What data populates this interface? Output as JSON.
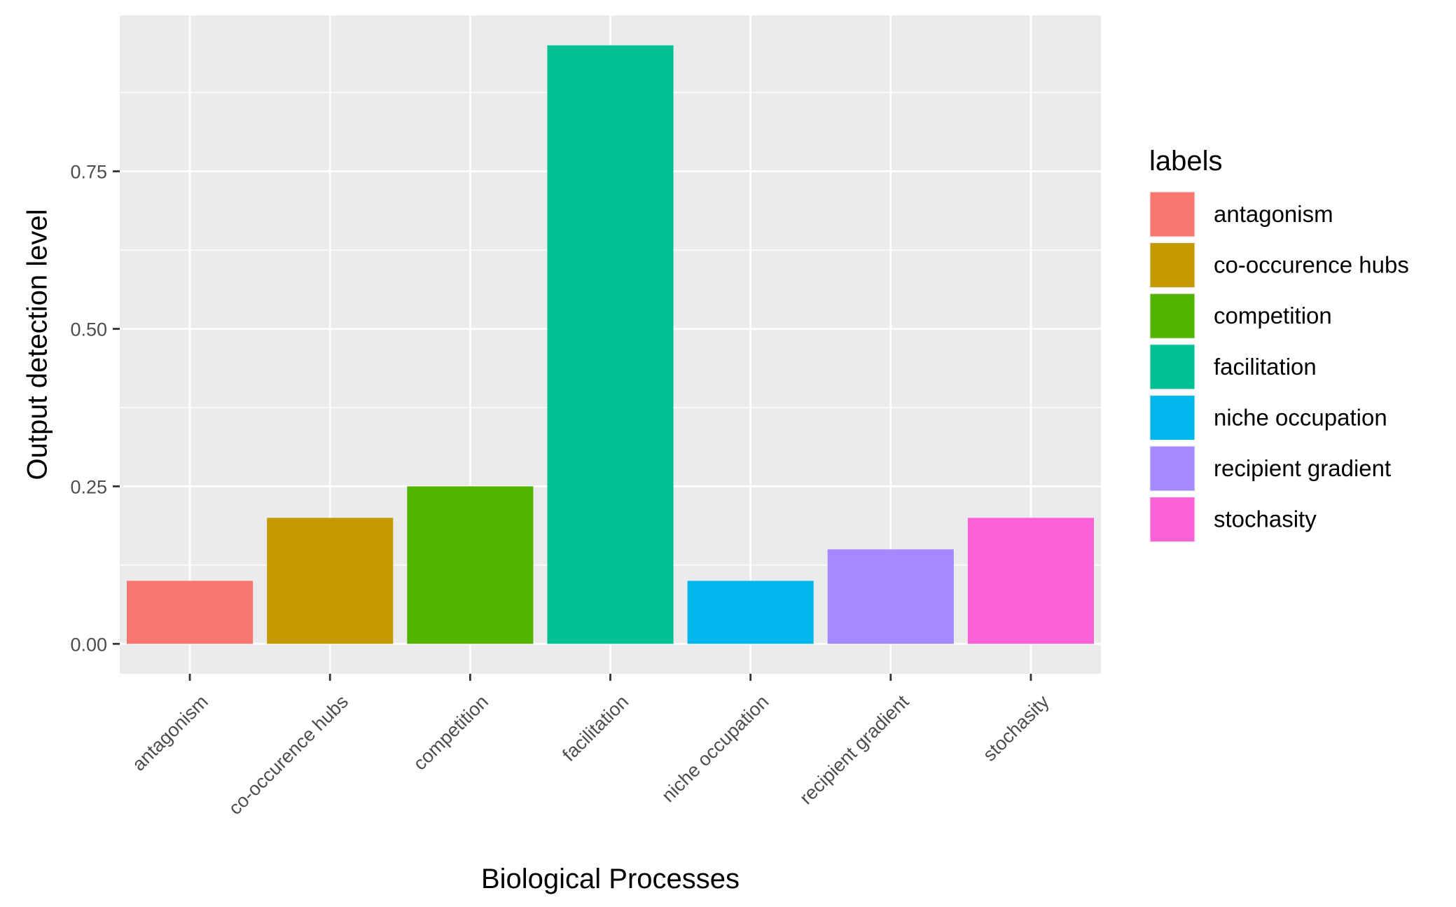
{
  "chart_data": {
    "type": "bar",
    "categories": [
      "antagonism",
      "co-occurence hubs",
      "competition",
      "facilitation",
      "niche occupation",
      "recipient gradient",
      "stochasity"
    ],
    "values": [
      0.1,
      0.2,
      0.25,
      0.95,
      0.1,
      0.15,
      0.2
    ],
    "colors": [
      "#F8766D",
      "#C49A00",
      "#53B400",
      "#00C094",
      "#00B6EB",
      "#A58AFF",
      "#FB61D7"
    ],
    "xlabel": "Biological Processes",
    "ylabel": "Output detection level",
    "ylim": [
      -0.0475,
      0.9975
    ],
    "yticks": [
      0.0,
      0.25,
      0.5,
      0.75
    ],
    "ytick_labels": [
      "0.00",
      "0.25",
      "0.50",
      "0.75"
    ],
    "grid": true,
    "legend": {
      "title": "labels",
      "position": "right",
      "items": [
        "antagonism",
        "co-occurence hubs",
        "competition",
        "facilitation",
        "niche occupation",
        "recipient gradient",
        "stochasity"
      ]
    }
  }
}
